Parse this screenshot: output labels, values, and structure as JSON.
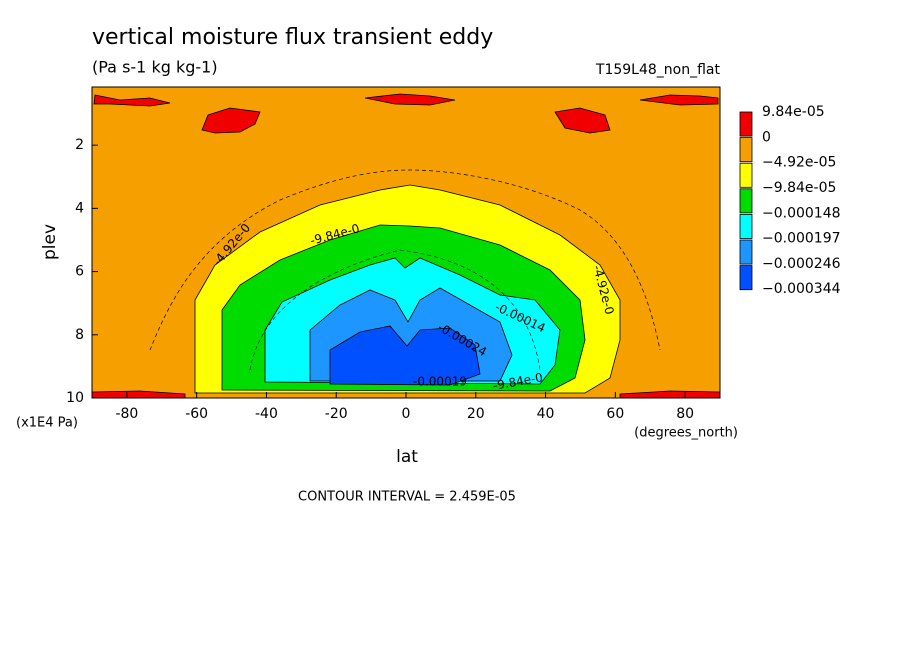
{
  "chart_data": {
    "type": "contour",
    "title": "vertical moisture flux transient eddy",
    "subtitle": "(Pa s-1 kg kg-1)",
    "run_label": "T159L48_non_flat",
    "x_label": "lat",
    "y_label": "plev",
    "x_unit": "(degrees_north)",
    "y_unit": "(x1E4 Pa)",
    "footer": "CONTOUR INTERVAL = 2.459E-05",
    "xlim": [
      -90,
      90
    ],
    "xticks": [
      -80,
      -60,
      -40,
      -20,
      0,
      20,
      40,
      60,
      80
    ],
    "ylim": [
      10,
      0.16
    ],
    "yticks": [
      2,
      4,
      6,
      8,
      10
    ],
    "colorbar": {
      "levels": [
        {
          "value": 9.84e-05,
          "label": "9.84e-05"
        },
        0,
        {
          "value": -4.92e-05,
          "label": "−4.92e-05"
        },
        {
          "value": -9.84e-05,
          "label": "−9.84e-05"
        },
        {
          "value": -0.000148,
          "label": "−0.000148"
        },
        {
          "value": -0.000197,
          "label": "−0.000197"
        },
        {
          "value": -0.000246,
          "label": "−0.000246"
        },
        {
          "value": -0.000344,
          "label": "−0.000344"
        }
      ],
      "colors": [
        "#f00000",
        "#f5a000",
        "#ffff00",
        "#00dc00",
        "#00ffff",
        "#1e96ff",
        "#0050ff"
      ]
    },
    "contour_labels": [
      "-4.92e-0",
      "-9.84e-0",
      "-0.00014",
      "-0.00024",
      "-0.00019",
      "-9.84e-0",
      "-4.92e-0"
    ]
  }
}
